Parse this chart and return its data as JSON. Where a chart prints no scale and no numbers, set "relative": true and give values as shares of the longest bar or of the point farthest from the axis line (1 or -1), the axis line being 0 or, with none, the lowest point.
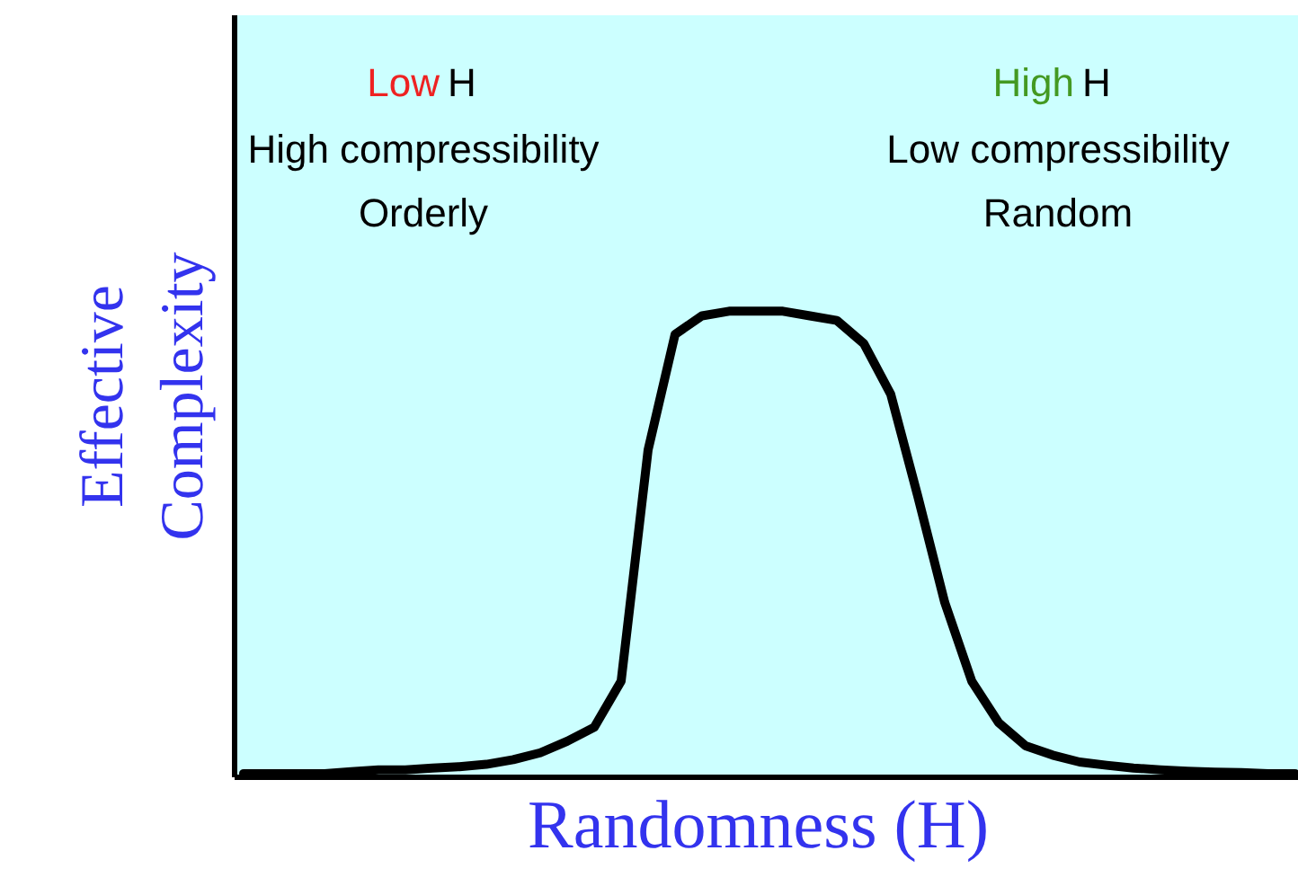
{
  "chart_data": {
    "type": "line",
    "relative": true,
    "xlabel": "Randomness  (H)",
    "ylabel": "Effective Complexity",
    "categories": [
      null,
      null,
      null,
      null,
      null,
      null,
      null,
      null,
      null,
      null,
      null,
      null,
      null,
      null,
      null,
      null,
      null,
      null,
      null,
      null,
      null,
      null,
      null,
      null,
      null,
      null,
      null,
      null,
      null,
      null,
      null,
      null,
      null,
      null,
      null,
      null,
      null,
      null,
      null,
      null
    ],
    "series": [
      {
        "color": "#000000",
        "values": [
          0,
          0,
          0,
          0,
          0.004,
          0.008,
          0.008,
          0.012,
          0.015,
          0.02,
          0.03,
          0.045,
          0.07,
          0.1,
          0.2,
          0.7,
          0.95,
          0.99,
          1,
          1,
          1,
          0.99,
          0.98,
          0.93,
          0.82,
          0.6,
          0.37,
          0.2,
          0.11,
          0.06,
          0.04,
          0.025,
          0.018,
          0.012,
          0.008,
          0.005,
          0.003,
          0.002,
          0,
          0
        ]
      }
    ],
    "annotations": [
      "Low H",
      "High compressibility",
      "Orderly",
      "High H",
      "Low compressibility",
      "Random"
    ],
    "line_style": "solid"
  }
}
